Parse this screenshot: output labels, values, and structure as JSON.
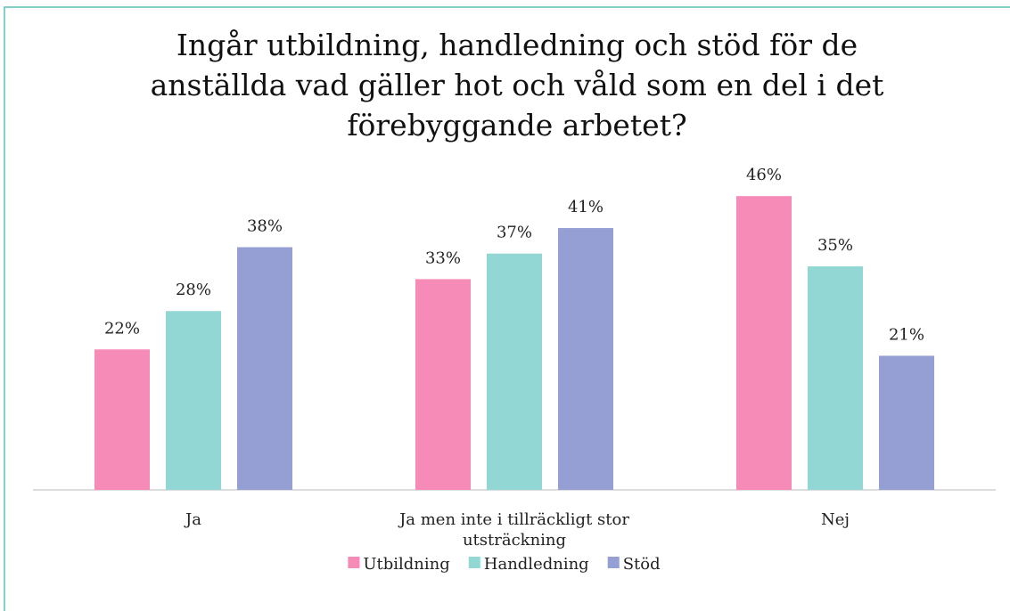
{
  "chart_data": {
    "type": "bar",
    "title": "Ingår utbildning, handledning och stöd för de anställda vad gäller hot och våld som en del i det förebyggande arbetet?",
    "categories": [
      "Ja",
      "Ja men inte i tillräckligt stor utsträckning",
      "Nej"
    ],
    "series": [
      {
        "name": "Utbildning",
        "color": "#f78bb8",
        "values": [
          22,
          33,
          46
        ],
        "value_labels": [
          "22%",
          "33%",
          "46%"
        ]
      },
      {
        "name": "Handledning",
        "color": "#92d7d4",
        "values": [
          28,
          37,
          35
        ],
        "value_labels": [
          "28%",
          "37%",
          "35%"
        ]
      },
      {
        "name": "Stöd",
        "color": "#959fd3",
        "values": [
          38,
          41,
          21
        ],
        "value_labels": [
          "38%",
          "41%",
          "21%"
        ]
      }
    ],
    "legend": "bottom"
  }
}
